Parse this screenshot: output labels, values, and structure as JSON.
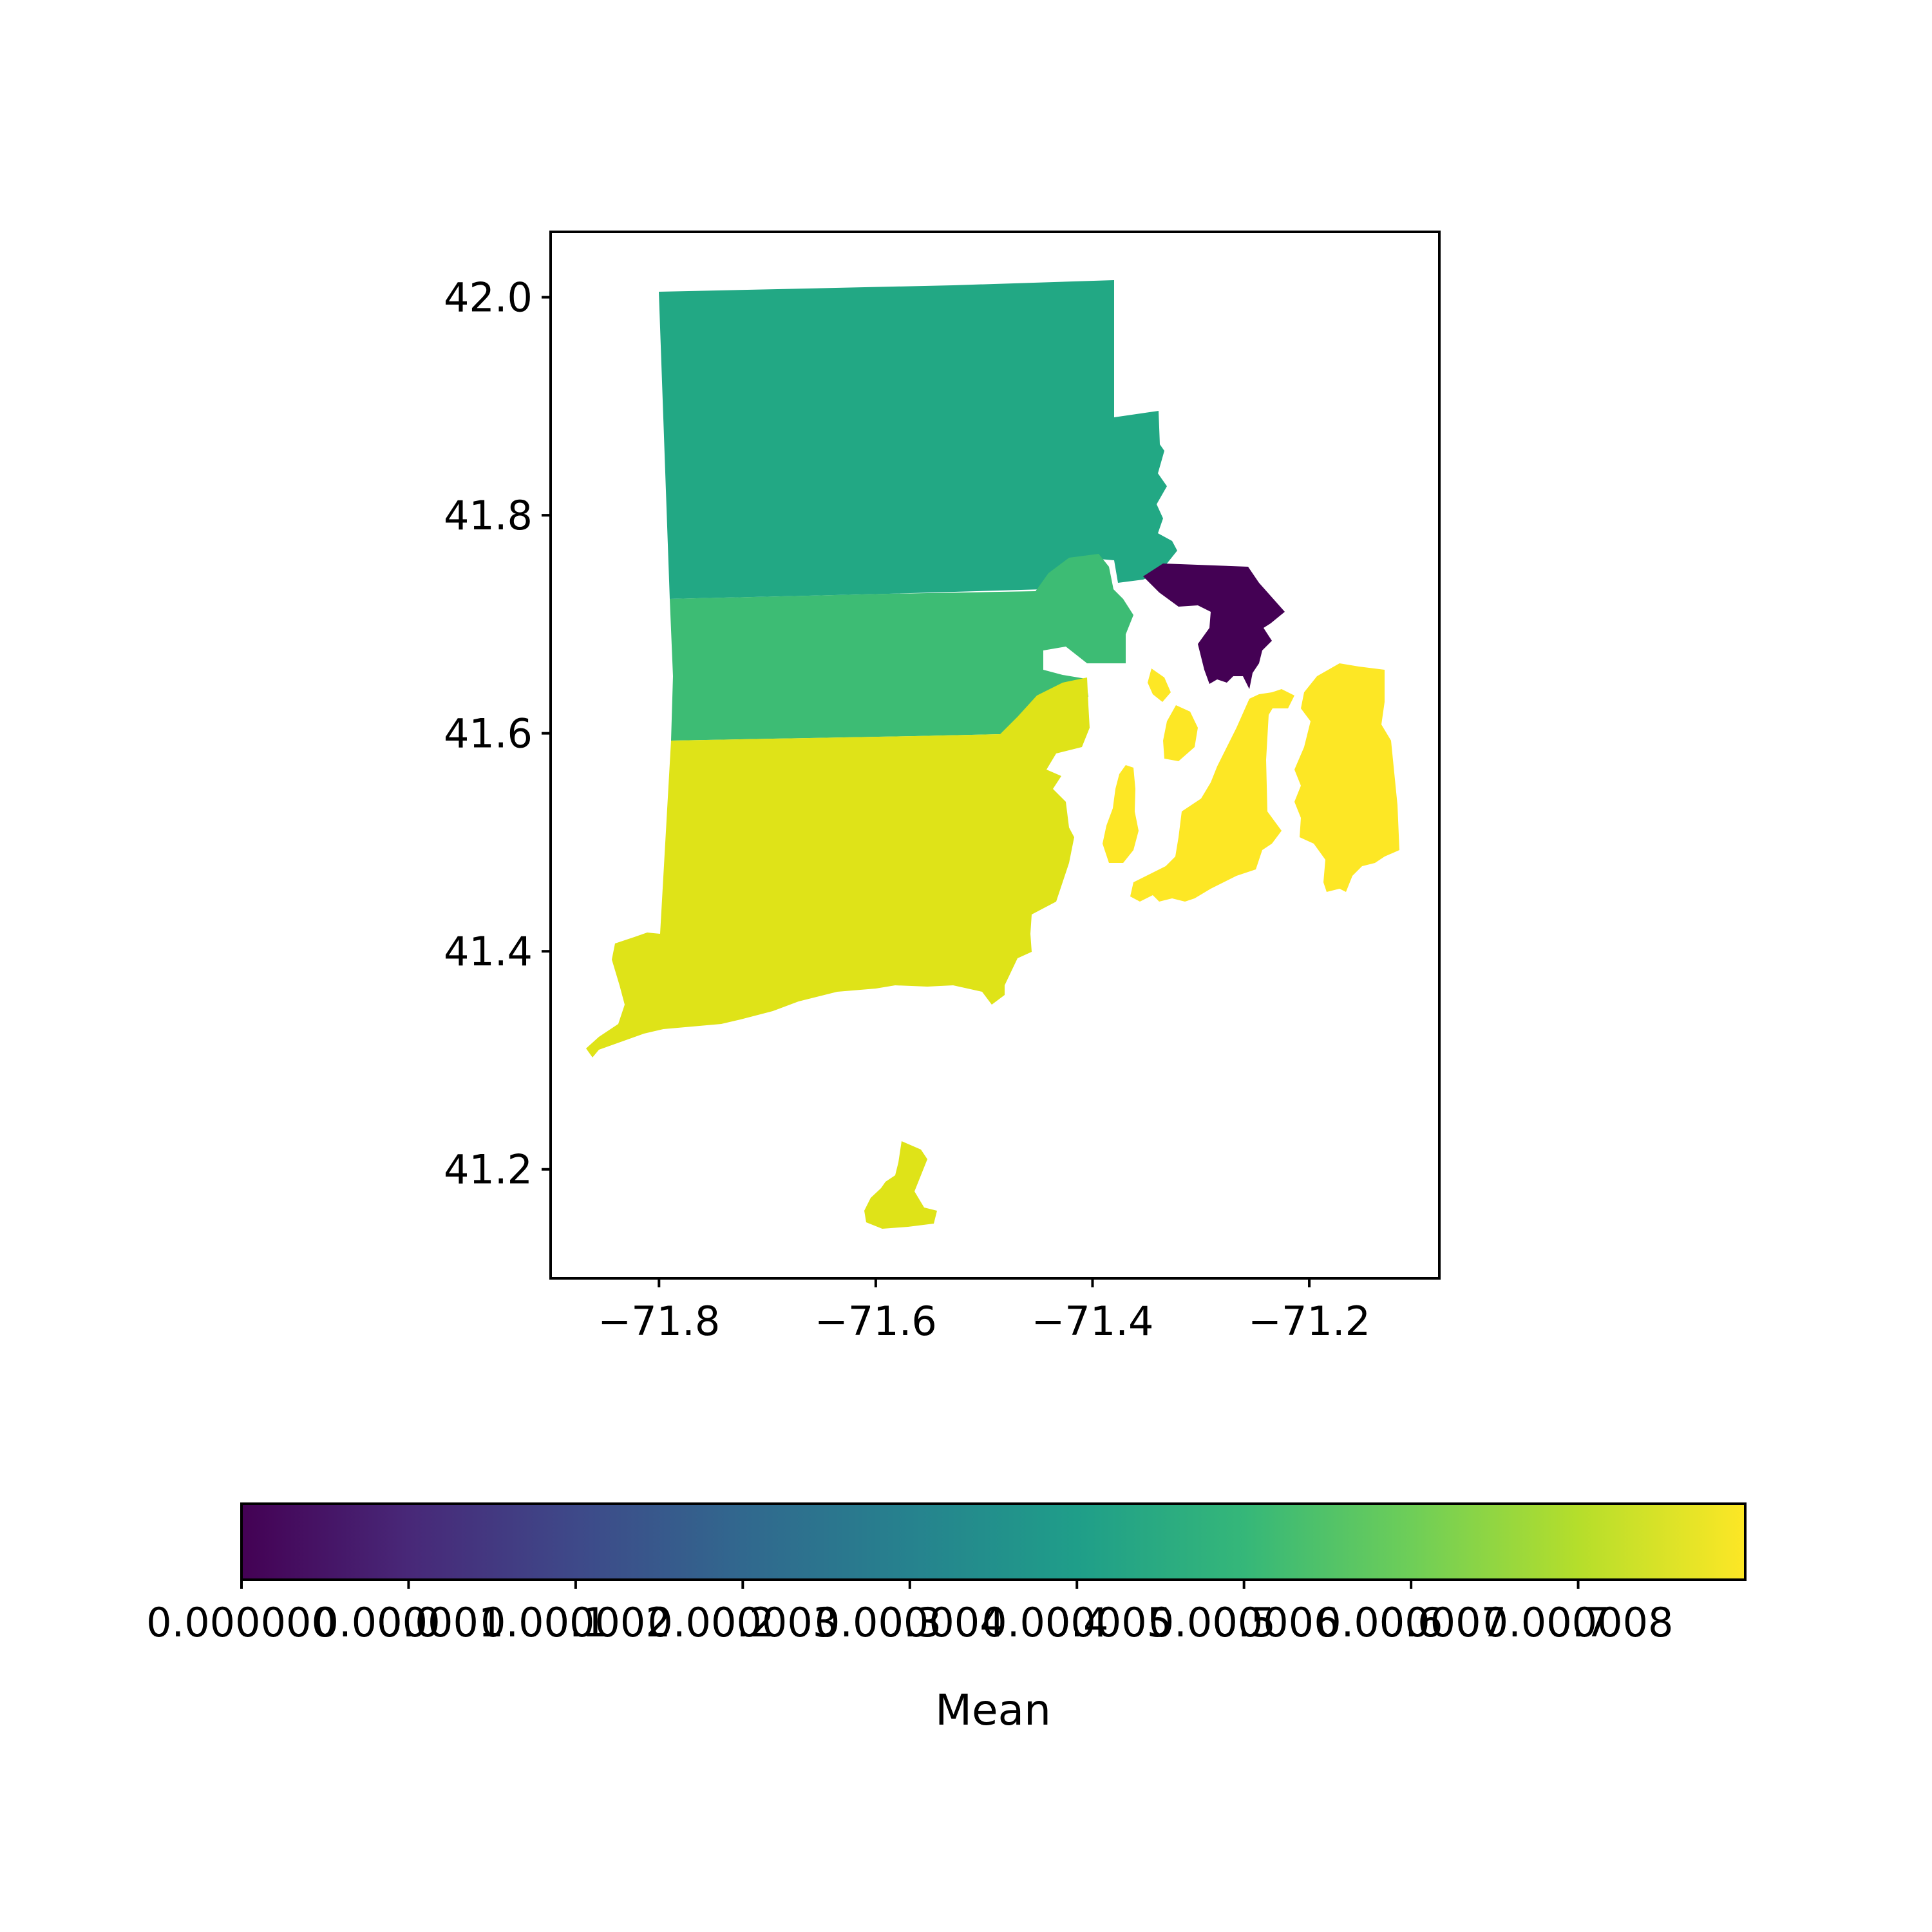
{
  "chart_data": {
    "type": "choropleth",
    "title": "",
    "xlabel": "",
    "ylabel": "",
    "xlim": [
      -71.9,
      -71.08
    ],
    "ylim": [
      41.1,
      42.06
    ],
    "x_ticks": [
      {
        "value": -71.8,
        "label": "−71.8"
      },
      {
        "value": -71.6,
        "label": "−71.6"
      },
      {
        "value": -71.4,
        "label": "−71.4"
      },
      {
        "value": -71.2,
        "label": "−71.2"
      }
    ],
    "y_ticks": [
      {
        "value": 42.0,
        "label": "42.0"
      },
      {
        "value": 41.8,
        "label": "41.8"
      },
      {
        "value": 41.6,
        "label": "41.6"
      },
      {
        "value": 41.4,
        "label": "41.4"
      },
      {
        "value": 41.2,
        "label": "41.2"
      }
    ],
    "regions": [
      {
        "id": "north",
        "color": "#22a884",
        "value": 0.44
      },
      {
        "id": "central",
        "color": "#3dbc74",
        "value": 0.52
      },
      {
        "id": "south",
        "color": "#dfe318",
        "value": 0.71
      },
      {
        "id": "east-bay",
        "color": "#440154",
        "value": 0.0
      },
      {
        "id": "east-islands",
        "color": "#fde725",
        "value": 0.72
      }
    ],
    "colorbar": {
      "label": "Mean",
      "colormap": "viridis",
      "range": [
        0,
        0.72
      ],
      "ticks": [
        {
          "value": 0.0,
          "label": "0.000000"
        },
        {
          "value": 0.08,
          "label": "0.000001"
        },
        {
          "value": 0.16,
          "label": "0.000002"
        },
        {
          "value": 0.24,
          "label": "0.000003"
        },
        {
          "value": 0.32,
          "label": "0.000004"
        },
        {
          "value": 0.4,
          "label": "0.000005"
        },
        {
          "value": 0.48,
          "label": "0.000006"
        },
        {
          "value": 0.56,
          "label": "0.000007"
        },
        {
          "value": 0.64,
          "label": "0.000008"
        }
      ],
      "overlay_ticks": [
        {
          "value": 0.08,
          "label": "0.0"
        },
        {
          "value": 0.16,
          "label": "0.1"
        },
        {
          "value": 0.24,
          "label": "0.2"
        },
        {
          "value": 0.32,
          "label": "0.3"
        },
        {
          "value": 0.4,
          "label": "0.4"
        },
        {
          "value": 0.48,
          "label": "0.5"
        },
        {
          "value": 0.56,
          "label": "0.6"
        },
        {
          "value": 0.64,
          "label": "0.7"
        }
      ],
      "stops": [
        "#440154",
        "#482878",
        "#3e4989",
        "#31688e",
        "#26828e",
        "#1f9e89",
        "#35b779",
        "#6ece58",
        "#b5de2b",
        "#fde725"
      ]
    }
  }
}
